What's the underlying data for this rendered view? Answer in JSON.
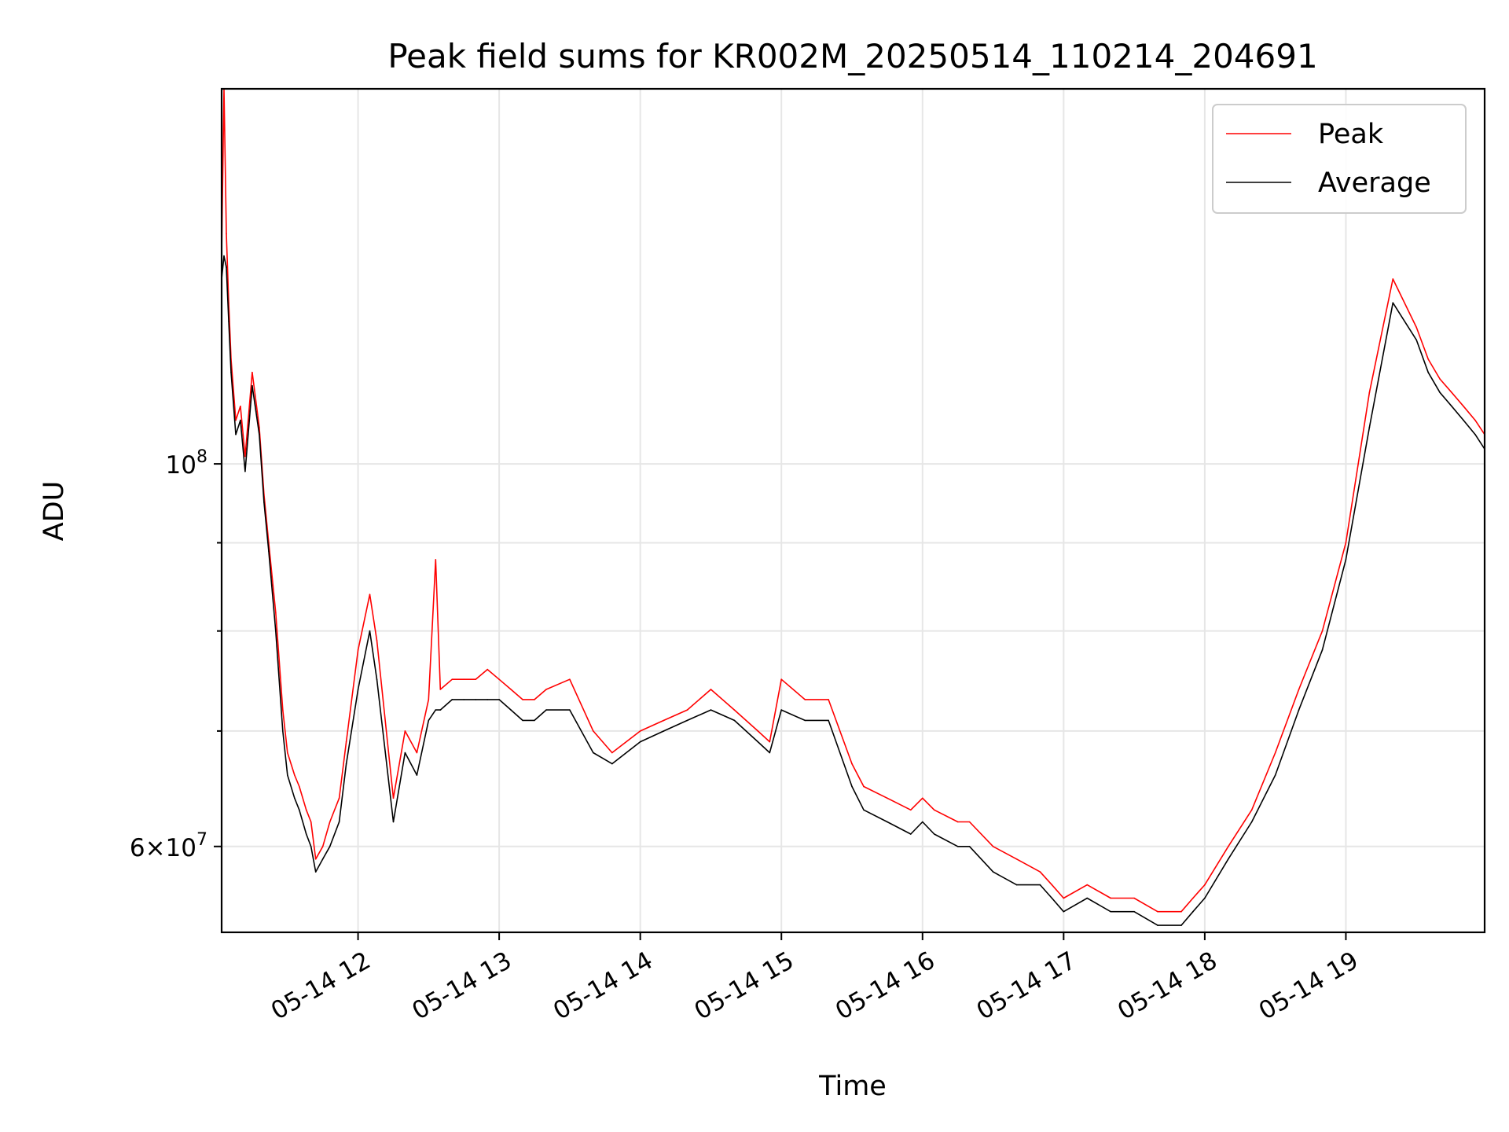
{
  "chart_data": {
    "type": "line",
    "title": "Peak field sums for KR002M_20250514_110214_204691",
    "xlabel": "Time",
    "ylabel": "ADU",
    "x_range": [
      "2025-05-14 11:02",
      "2025-05-14 19:59"
    ],
    "y_scale": "log",
    "ylim": [
      53500000,
      165000000
    ],
    "grid": true,
    "legend_position": "upper right",
    "x_ticks": [
      {
        "hour": 12,
        "label": "05-14 12"
      },
      {
        "hour": 13,
        "label": "05-14 13"
      },
      {
        "hour": 14,
        "label": "05-14 14"
      },
      {
        "hour": 15,
        "label": "05-14 15"
      },
      {
        "hour": 16,
        "label": "05-14 16"
      },
      {
        "hour": 17,
        "label": "05-14 17"
      },
      {
        "hour": 18,
        "label": "05-14 18"
      },
      {
        "hour": 19,
        "label": "05-14 19"
      }
    ],
    "y_major_ticks": [
      {
        "value": 100000000,
        "mantissa": "",
        "base": "10",
        "exponent": "8"
      },
      {
        "value": 60000000,
        "mantissa": "6×",
        "base": "10",
        "exponent": "7"
      }
    ],
    "y_minor_ticks": [
      70000000,
      80000000,
      90000000
    ],
    "series": [
      {
        "name": "Peak",
        "color": "#ff0000",
        "time": [
          "11:02",
          "11:03",
          "11:04",
          "11:05",
          "11:06",
          "11:08",
          "11:10",
          "11:12",
          "11:15",
          "11:18",
          "11:20",
          "11:22",
          "11:25",
          "11:28",
          "11:30",
          "11:33",
          "11:35",
          "11:38",
          "11:40",
          "11:42",
          "11:45",
          "11:48",
          "11:52",
          "11:55",
          "12:00",
          "12:05",
          "12:08",
          "12:15",
          "12:20",
          "12:25",
          "12:30",
          "12:33",
          "12:35",
          "12:40",
          "12:45",
          "12:50",
          "12:55",
          "13:00",
          "13:05",
          "13:10",
          "13:15",
          "13:20",
          "13:30",
          "13:40",
          "13:48",
          "14:00",
          "14:10",
          "14:20",
          "14:30",
          "14:40",
          "14:50",
          "14:55",
          "15:00",
          "15:10",
          "15:20",
          "15:30",
          "15:35",
          "15:45",
          "15:55",
          "16:00",
          "16:05",
          "16:15",
          "16:20",
          "16:30",
          "16:40",
          "16:50",
          "16:55",
          "17:00",
          "17:10",
          "17:20",
          "17:30",
          "17:40",
          "17:50",
          "17:55",
          "18:00",
          "18:10",
          "18:20",
          "18:30",
          "18:40",
          "18:50",
          "19:00",
          "19:10",
          "19:20",
          "19:30",
          "19:35",
          "19:40",
          "19:45",
          "19:50",
          "19:55",
          "19:59"
        ],
        "values": [
          132000000,
          165000000,
          136000000,
          124000000,
          115000000,
          106000000,
          108000000,
          101000000,
          113000000,
          105000000,
          96000000,
          90000000,
          82000000,
          72000000,
          68000000,
          66000000,
          65000000,
          63000000,
          62000000,
          59000000,
          60000000,
          62000000,
          64000000,
          69000000,
          78000000,
          84000000,
          79000000,
          64000000,
          70000000,
          68000000,
          73000000,
          88000000,
          74000000,
          75000000,
          75000000,
          75000000,
          76000000,
          75000000,
          74000000,
          73000000,
          73000000,
          74000000,
          75000000,
          70000000,
          68000000,
          70000000,
          71000000,
          72000000,
          74000000,
          72000000,
          70000000,
          69000000,
          75000000,
          73000000,
          73000000,
          67000000,
          65000000,
          64000000,
          63000000,
          64000000,
          63000000,
          62000000,
          62000000,
          60000000,
          59000000,
          58000000,
          57000000,
          56000000,
          57000000,
          56000000,
          56000000,
          55000000,
          55000000,
          56000000,
          57000000,
          60000000,
          63000000,
          68000000,
          74000000,
          80000000,
          90000000,
          110000000,
          128000000,
          120000000,
          115000000,
          112000000,
          110000000,
          108000000,
          106000000,
          104000000
        ]
      },
      {
        "name": "Average",
        "color": "#000000",
        "time": [
          "11:02",
          "11:03",
          "11:04",
          "11:05",
          "11:06",
          "11:08",
          "11:10",
          "11:12",
          "11:15",
          "11:18",
          "11:20",
          "11:22",
          "11:25",
          "11:28",
          "11:30",
          "11:33",
          "11:35",
          "11:38",
          "11:40",
          "11:42",
          "11:45",
          "11:48",
          "11:52",
          "11:55",
          "12:00",
          "12:05",
          "12:08",
          "12:15",
          "12:20",
          "12:25",
          "12:30",
          "12:33",
          "12:35",
          "12:40",
          "12:45",
          "12:50",
          "12:55",
          "13:00",
          "13:05",
          "13:10",
          "13:15",
          "13:20",
          "13:30",
          "13:40",
          "13:48",
          "14:00",
          "14:10",
          "14:20",
          "14:30",
          "14:40",
          "14:50",
          "14:55",
          "15:00",
          "15:10",
          "15:20",
          "15:30",
          "15:35",
          "15:45",
          "15:55",
          "16:00",
          "16:05",
          "16:15",
          "16:20",
          "16:30",
          "16:40",
          "16:50",
          "16:55",
          "17:00",
          "17:10",
          "17:20",
          "17:30",
          "17:40",
          "17:50",
          "17:55",
          "18:00",
          "18:10",
          "18:20",
          "18:30",
          "18:40",
          "18:50",
          "19:00",
          "19:10",
          "19:20",
          "19:30",
          "19:35",
          "19:40",
          "19:45",
          "19:50",
          "19:55",
          "19:59"
        ],
        "values": [
          128000000,
          132000000,
          130000000,
          121000000,
          113000000,
          104000000,
          106000000,
          99000000,
          111000000,
          104000000,
          95000000,
          89000000,
          80000000,
          70000000,
          66000000,
          64000000,
          63000000,
          61000000,
          60000000,
          58000000,
          59000000,
          60000000,
          62000000,
          67000000,
          74000000,
          80000000,
          75000000,
          62000000,
          68000000,
          66000000,
          71000000,
          72000000,
          72000000,
          73000000,
          73000000,
          73000000,
          73000000,
          73000000,
          72000000,
          71000000,
          71000000,
          72000000,
          72000000,
          68000000,
          67000000,
          69000000,
          70000000,
          71000000,
          72000000,
          71000000,
          69000000,
          68000000,
          72000000,
          71000000,
          71000000,
          65000000,
          63000000,
          62000000,
          61000000,
          62000000,
          61000000,
          60000000,
          60000000,
          58000000,
          57000000,
          57000000,
          56000000,
          55000000,
          56000000,
          55000000,
          55000000,
          54000000,
          54000000,
          55000000,
          56000000,
          59000000,
          62000000,
          66000000,
          72000000,
          78000000,
          88000000,
          105000000,
          124000000,
          118000000,
          113000000,
          110000000,
          108000000,
          106000000,
          104000000,
          102000000
        ]
      }
    ]
  }
}
